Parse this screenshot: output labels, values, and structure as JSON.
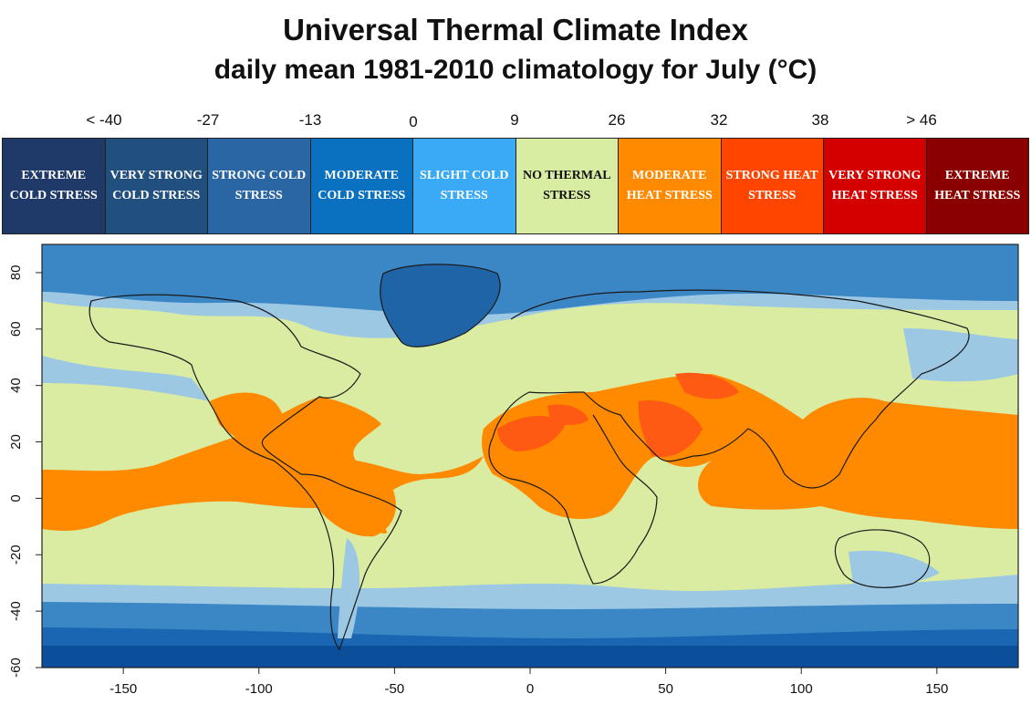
{
  "title": "Universal Thermal Climate Index",
  "subtitle": "daily mean 1981-2010 climatology for July (°C)",
  "legend": {
    "thresholds": [
      "< -40",
      "-27",
      "-13",
      "0",
      "9",
      "26",
      "32",
      "38",
      "> 46"
    ],
    "categories": [
      {
        "label": "EXTREME COLD STRESS",
        "color": "#1f3a68"
      },
      {
        "label": "VERY STRONG COLD STRESS",
        "color": "#21507e"
      },
      {
        "label": "STRONG COLD STRESS",
        "color": "#2a66a3"
      },
      {
        "label": "MODERATE COLD STRESS",
        "color": "#0a70c0"
      },
      {
        "label": "SLIGHT COLD STRESS",
        "color": "#3aa9f6"
      },
      {
        "label": "NO THERMAL STRESS",
        "color": "#d8eca2"
      },
      {
        "label": "MODERATE HEAT STRESS",
        "color": "#ff8a00"
      },
      {
        "label": "STRONG HEAT STRESS",
        "color": "#ff4500"
      },
      {
        "label": "VERY STRONG HEAT STRESS",
        "color": "#d40000"
      },
      {
        "label": "EXTREME HEAT STRESS",
        "color": "#8a0000"
      }
    ]
  },
  "chart_data": {
    "type": "heatmap",
    "title": "Universal Thermal Climate Index",
    "subtitle": "daily mean 1981-2010 climatology for July (°C)",
    "x_ticks": [
      -150,
      -100,
      -50,
      0,
      50,
      100,
      150
    ],
    "y_ticks": [
      -60,
      -40,
      -20,
      0,
      20,
      40,
      60,
      80
    ],
    "xlim": [
      -180,
      180
    ],
    "ylim": [
      -60,
      90
    ],
    "map_colors": {
      "band_outer_cold": "#0b4f9a",
      "band_strong_cold": "#1a66b3",
      "band_moderate_cold": "#3b86c4",
      "band_slight_cold": "#9cc8e4",
      "no_stress": "#d9eca2",
      "moderate_heat": "#ff8a00",
      "strong_heat": "#ff5a14",
      "greenland": "#2064a8"
    }
  }
}
